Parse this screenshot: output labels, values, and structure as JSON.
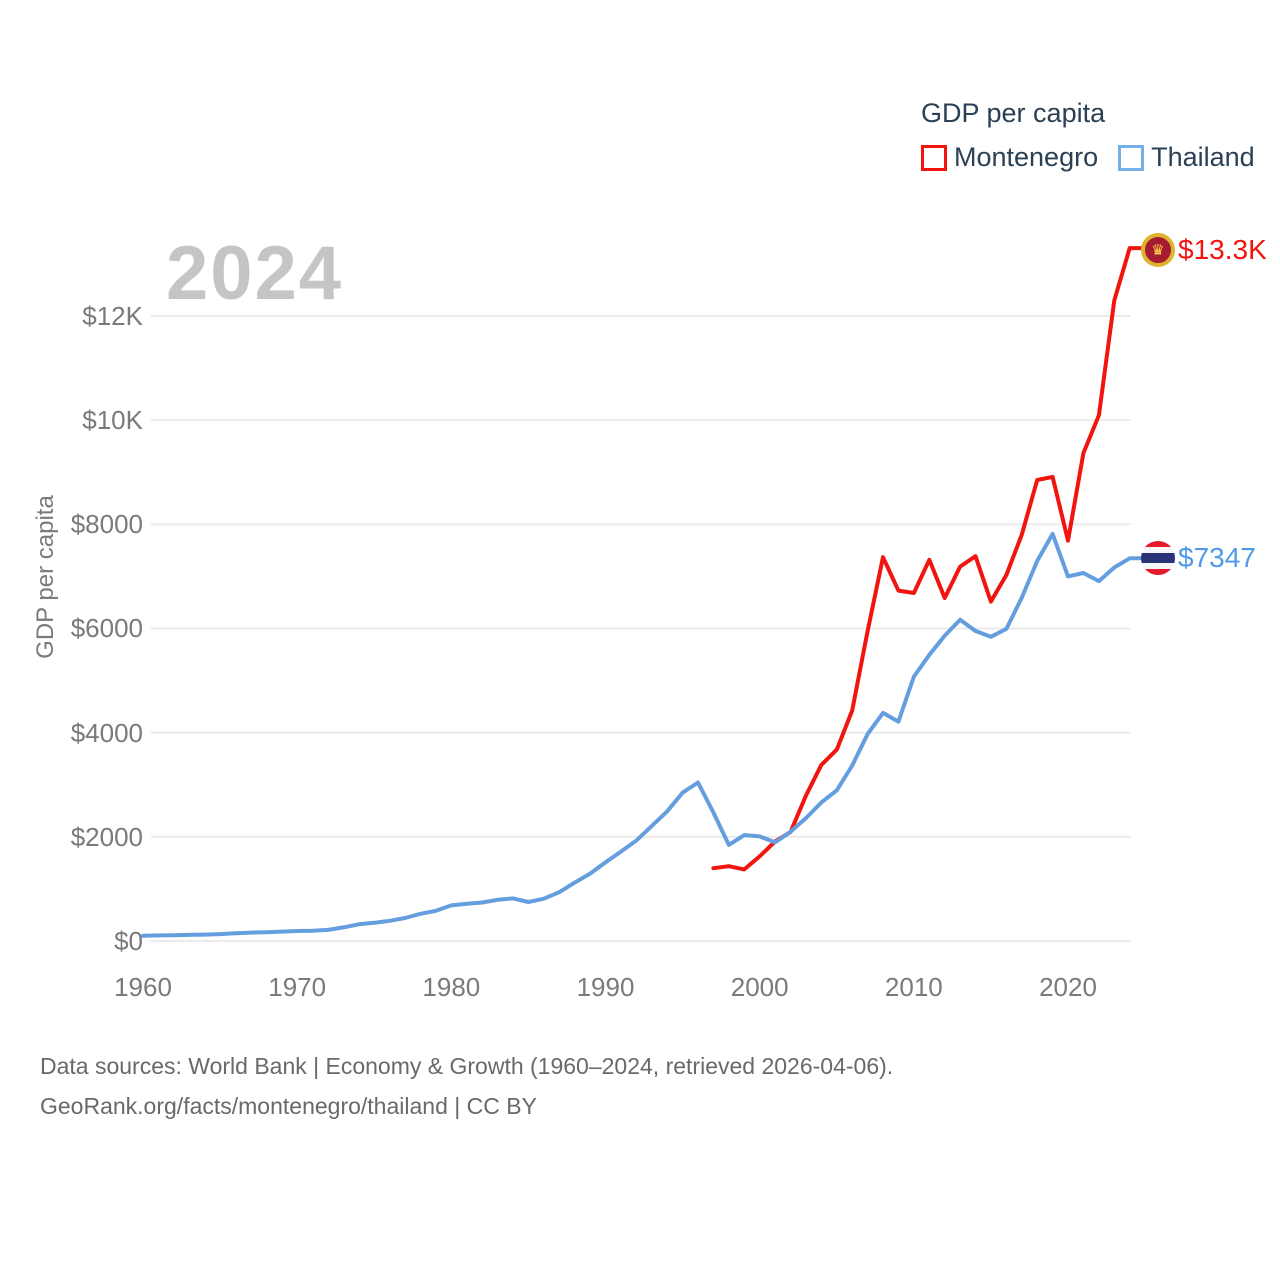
{
  "legend": {
    "title": "GDP per capita",
    "items": [
      {
        "label": "Montenegro",
        "color": "#f2140e"
      },
      {
        "label": "Thailand",
        "color": "#74afe8"
      }
    ]
  },
  "year_label": "2024",
  "axes": {
    "y_title": "GDP per capita",
    "y_ticks": [
      {
        "label": "$0",
        "value": 0
      },
      {
        "label": "$2000",
        "value": 2000
      },
      {
        "label": "$4000",
        "value": 4000
      },
      {
        "label": "$6000",
        "value": 6000
      },
      {
        "label": "$8000",
        "value": 8000
      },
      {
        "label": "$10K",
        "value": 10000
      },
      {
        "label": "$12K",
        "value": 12000
      }
    ],
    "x_ticks": [
      {
        "label": "1960",
        "value": 1960
      },
      {
        "label": "1970",
        "value": 1970
      },
      {
        "label": "1980",
        "value": 1980
      },
      {
        "label": "1990",
        "value": 1990
      },
      {
        "label": "2000",
        "value": 2000
      },
      {
        "label": "2010",
        "value": 2010
      },
      {
        "label": "2020",
        "value": 2020
      }
    ]
  },
  "end_labels": {
    "montenegro": {
      "text": "$13.3K",
      "color": "#f2140e",
      "flag": "montenegro-flag"
    },
    "thailand": {
      "text": "$7347",
      "color": "#4f9ae8",
      "flag": "thailand-flag"
    }
  },
  "footer": {
    "line1": "Data sources: World Bank | Economy & Growth (1960–2024, retrieved 2026-04-06).",
    "line2": "GeoRank.org/facts/montenegro/thailand | CC BY"
  },
  "chart_data": {
    "type": "line",
    "title": "GDP per capita",
    "ylabel": "GDP per capita",
    "xlim": [
      1960,
      2024
    ],
    "ylim": [
      0,
      13500
    ],
    "grid": true,
    "legend_position": "top-right",
    "x": [
      1960,
      1961,
      1962,
      1963,
      1964,
      1965,
      1966,
      1967,
      1968,
      1969,
      1970,
      1971,
      1972,
      1973,
      1974,
      1975,
      1976,
      1977,
      1978,
      1979,
      1980,
      1981,
      1982,
      1983,
      1984,
      1985,
      1986,
      1987,
      1988,
      1989,
      1990,
      1991,
      1992,
      1993,
      1994,
      1995,
      1996,
      1997,
      1998,
      1999,
      2000,
      2001,
      2002,
      2003,
      2004,
      2005,
      2006,
      2007,
      2008,
      2009,
      2010,
      2011,
      2012,
      2013,
      2014,
      2015,
      2016,
      2017,
      2018,
      2019,
      2020,
      2021,
      2022,
      2023,
      2024
    ],
    "series": [
      {
        "name": "Montenegro",
        "color": "#f2140e",
        "end_label": "$13.3K",
        "values": [
          null,
          null,
          null,
          null,
          null,
          null,
          null,
          null,
          null,
          null,
          null,
          null,
          null,
          null,
          null,
          null,
          null,
          null,
          null,
          null,
          null,
          null,
          null,
          null,
          null,
          null,
          null,
          null,
          null,
          null,
          null,
          null,
          null,
          null,
          null,
          null,
          null,
          1398,
          1437,
          1375,
          1627,
          1910,
          2090,
          2789,
          3380,
          3674,
          4425,
          5950,
          7368,
          6727,
          6682,
          7319,
          6586,
          7189,
          7388,
          6517,
          7029,
          7803,
          8850,
          8910,
          7686,
          9367,
          10093,
          12300,
          13304
        ]
      },
      {
        "name": "Thailand",
        "color": "#649ede",
        "end_label": "$7347",
        "values": [
          101,
          107,
          112,
          117,
          123,
          132,
          149,
          161,
          169,
          180,
          192,
          197,
          213,
          262,
          320,
          349,
          387,
          441,
          522,
          580,
          683,
          717,
          739,
          791,
          818,
          748,
          812,
          936,
          1122,
          1294,
          1509,
          1716,
          1927,
          2209,
          2491,
          2847,
          3043,
          2468,
          1846,
          2033,
          2008,
          1893,
          2096,
          2359,
          2660,
          2894,
          3369,
          3973,
          4379,
          4213,
          5076,
          5492,
          5861,
          6168,
          5952,
          5840,
          5993,
          6593,
          7296,
          7817,
          7001,
          7066,
          6909,
          7171,
          7347
        ]
      }
    ]
  }
}
